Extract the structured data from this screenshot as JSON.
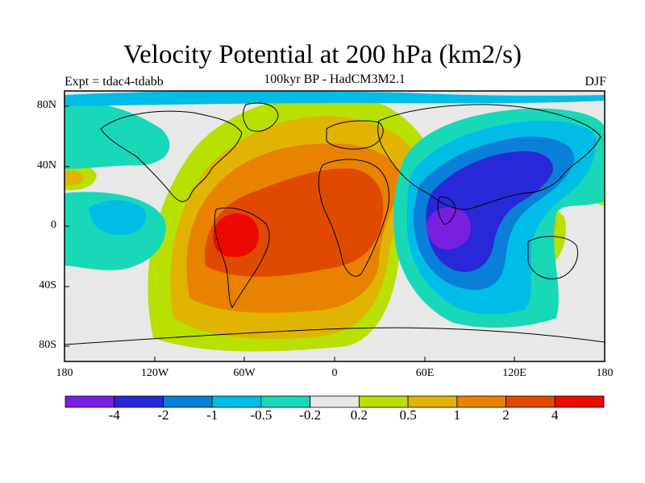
{
  "title": "Velocity Potential at 200 hPa (km2/s)",
  "subtitle": "100kyr BP - HadCM3M2.1",
  "experiment": "Expt = tdac4-tdabb",
  "season": "DJF",
  "map": {
    "lat_labels": [
      "80N",
      "40N",
      "0",
      "40S",
      "80S"
    ],
    "lon_labels": [
      "180",
      "120W",
      "60W",
      "0",
      "60E",
      "120E",
      "180"
    ],
    "background_color": "#e8e8e8"
  },
  "colorbar": {
    "labels": [
      "-4",
      "-2",
      "-1",
      "-0.5",
      "-0.2",
      "0.2",
      "0.5",
      "1",
      "2",
      "4"
    ],
    "colors": [
      "#7a1fe0",
      "#2828d8",
      "#0a7fd8",
      "#00bde8",
      "#18d8b8",
      "#e8e8e8",
      "#b8e000",
      "#e0b400",
      "#e88200",
      "#e04a00",
      "#ec0a00"
    ]
  }
}
